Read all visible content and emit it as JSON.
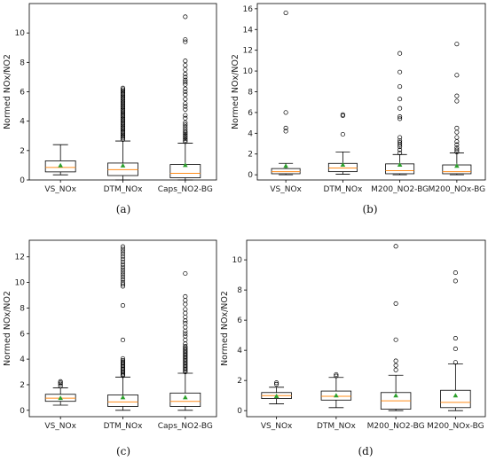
{
  "chart_data": [
    {
      "panel_label": "(a)",
      "type": "boxplot",
      "ylabel": "Normed NOx/NO2",
      "ylim": [
        0,
        12
      ],
      "yticks": [
        0,
        2,
        4,
        6,
        8,
        10
      ],
      "categories": [
        "VS_NOx",
        "DTM_NOx",
        "Caps_NO2-BG"
      ],
      "boxes": [
        {
          "whislo": 0.35,
          "q1": 0.55,
          "med": 0.85,
          "q3": 1.3,
          "whishi": 2.4,
          "mean": 0.98,
          "fliers": []
        },
        {
          "whislo": 0.0,
          "q1": 0.3,
          "med": 0.7,
          "q3": 1.15,
          "whishi": 2.65,
          "mean": 0.97,
          "fliers": [
            2.75,
            2.85,
            2.95,
            3.05,
            3.15,
            3.25,
            3.35,
            3.45,
            3.55,
            3.65,
            3.75,
            3.85,
            3.95,
            4.05,
            4.15,
            4.25,
            4.35,
            4.45,
            4.55,
            4.65,
            4.75,
            4.85,
            4.95,
            5.05,
            5.15,
            5.25,
            5.35,
            5.45,
            5.55,
            5.65,
            5.75,
            5.85,
            5.95,
            6.05,
            6.15,
            6.25
          ]
        },
        {
          "whislo": 0.0,
          "q1": 0.15,
          "med": 0.45,
          "q3": 1.05,
          "whishi": 2.5,
          "mean": 1.0,
          "fliers": [
            2.6,
            2.7,
            2.8,
            2.9,
            3.0,
            3.1,
            3.2,
            3.3,
            3.45,
            3.6,
            3.75,
            3.9,
            4.2,
            4.4,
            4.8,
            5.0,
            5.2,
            5.5,
            5.8,
            6.0,
            6.2,
            6.5,
            6.65,
            6.8,
            7.0,
            7.2,
            7.5,
            7.8,
            8.1,
            9.4,
            9.55,
            11.1
          ]
        }
      ]
    },
    {
      "panel_label": "(b)",
      "type": "boxplot",
      "ylabel": "Normed NOx/NO2",
      "ylim": [
        -0.5,
        16.5
      ],
      "yticks": [
        0,
        2,
        4,
        6,
        8,
        10,
        12,
        14,
        16
      ],
      "categories": [
        "VS_NOx",
        "DTM_NOx",
        "M200_NO2-BG",
        "M200_NOx-BG"
      ],
      "boxes": [
        {
          "whislo": 0.0,
          "q1": 0.1,
          "med": 0.3,
          "q3": 0.6,
          "whishi": 1.1,
          "mean": 0.85,
          "fliers": [
            4.2,
            4.5,
            6.0,
            15.6
          ]
        },
        {
          "whislo": 0.05,
          "q1": 0.3,
          "med": 0.65,
          "q3": 1.1,
          "whishi": 2.2,
          "mean": 0.95,
          "fliers": [
            3.9,
            5.7,
            5.8
          ]
        },
        {
          "whislo": 0.0,
          "q1": 0.1,
          "med": 0.4,
          "q3": 1.05,
          "whishi": 1.95,
          "mean": 0.95,
          "fliers": [
            2.1,
            2.4,
            2.7,
            2.9,
            3.1,
            3.3,
            3.6,
            5.4,
            5.6,
            6.4,
            7.3,
            8.5,
            9.9,
            11.7
          ]
        },
        {
          "whislo": 0.0,
          "q1": 0.1,
          "med": 0.3,
          "q3": 0.95,
          "whishi": 2.1,
          "mean": 0.85,
          "fliers": [
            2.2,
            2.4,
            2.6,
            2.9,
            3.2,
            3.6,
            4.1,
            4.5,
            7.1,
            7.6,
            9.6,
            12.6
          ]
        }
      ]
    },
    {
      "panel_label": "(c)",
      "type": "boxplot",
      "ylabel": "Normed NOx/NO2",
      "ylim": [
        -0.5,
        13.3
      ],
      "yticks": [
        0,
        2,
        4,
        6,
        8,
        10,
        12
      ],
      "categories": [
        "VS_NOx",
        "DTM_NOx",
        "Caps_NO2-BG"
      ],
      "boxes": [
        {
          "whislo": 0.4,
          "q1": 0.7,
          "med": 0.95,
          "q3": 1.25,
          "whishi": 1.75,
          "mean": 0.95,
          "fliers": [
            1.9,
            2.05,
            2.15,
            2.25
          ]
        },
        {
          "whislo": 0.0,
          "q1": 0.3,
          "med": 0.65,
          "q3": 1.2,
          "whishi": 2.6,
          "mean": 1.0,
          "fliers": [
            2.7,
            2.8,
            2.9,
            3.0,
            3.1,
            3.2,
            3.3,
            3.4,
            3.5,
            3.6,
            3.7,
            3.8,
            3.9,
            4.05,
            5.5,
            8.2,
            9.7,
            9.85,
            10.0,
            10.2,
            10.4,
            10.6,
            10.8,
            11.0,
            11.2,
            11.4,
            11.6,
            11.8,
            12.0,
            12.2,
            12.4,
            12.6,
            12.8
          ]
        },
        {
          "whislo": 0.0,
          "q1": 0.3,
          "med": 0.7,
          "q3": 1.35,
          "whishi": 2.9,
          "mean": 1.0,
          "fliers": [
            3.0,
            3.1,
            3.2,
            3.3,
            3.4,
            3.5,
            3.6,
            3.7,
            3.8,
            3.9,
            4.0,
            4.1,
            4.2,
            4.3,
            4.4,
            4.5,
            4.6,
            4.7,
            4.8,
            4.9,
            5.0,
            5.2,
            5.5,
            5.8,
            6.0,
            6.2,
            6.5,
            6.8,
            7.0,
            7.3,
            7.6,
            7.9,
            8.3,
            8.6,
            8.9,
            10.7
          ]
        }
      ]
    },
    {
      "panel_label": "(d)",
      "type": "boxplot",
      "ylabel": "Normed NOx/NO2",
      "ylim": [
        -0.4,
        11.3
      ],
      "yticks": [
        0,
        2,
        4,
        6,
        8,
        10
      ],
      "categories": [
        "VS_NOx",
        "DTM_NOx",
        "M200_NO2-BG",
        "M200_NOx-BG"
      ],
      "boxes": [
        {
          "whislo": 0.45,
          "q1": 0.8,
          "med": 1.0,
          "q3": 1.2,
          "whishi": 1.55,
          "mean": 0.95,
          "fliers": [
            1.75,
            1.85
          ]
        },
        {
          "whislo": 0.2,
          "q1": 0.7,
          "med": 0.95,
          "q3": 1.3,
          "whishi": 2.2,
          "mean": 1.0,
          "fliers": [
            2.3,
            2.4
          ]
        },
        {
          "whislo": 0.0,
          "q1": 0.1,
          "med": 0.65,
          "q3": 1.2,
          "whishi": 2.35,
          "mean": 1.0,
          "fliers": [
            2.7,
            3.0,
            3.3,
            4.7,
            7.1,
            10.9
          ]
        },
        {
          "whislo": 0.0,
          "q1": 0.2,
          "med": 0.55,
          "q3": 1.35,
          "whishi": 3.1,
          "mean": 1.0,
          "fliers": [
            3.2,
            4.1,
            4.8,
            8.6,
            9.15
          ]
        }
      ]
    }
  ]
}
